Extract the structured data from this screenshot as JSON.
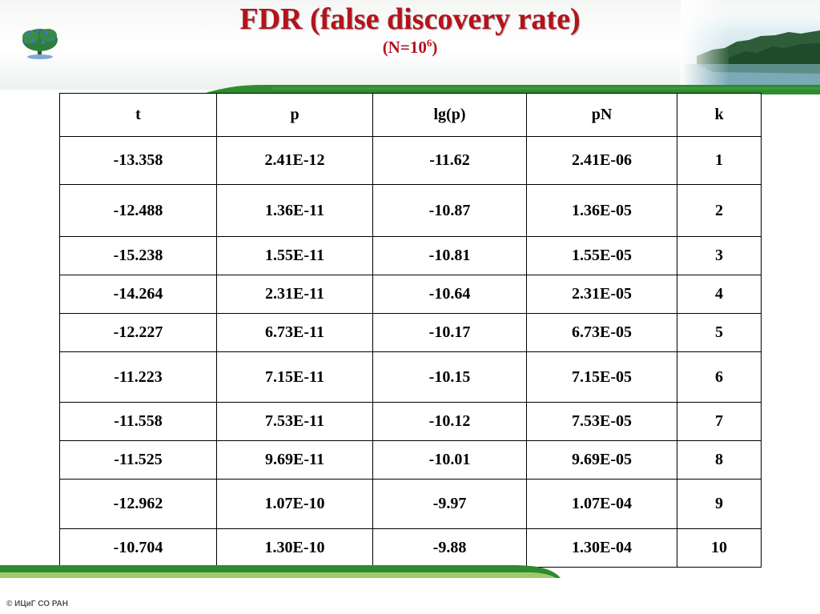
{
  "slide": {
    "title": "FDR (false discovery rate)",
    "subtitle_prefix": "(N=10",
    "subtitle_exponent": "6",
    "subtitle_suffix": ")",
    "footer": "© ИЦиГ СО РАН"
  },
  "colors": {
    "title": "#b5121b",
    "bar_green": "#2e8b2e",
    "bar_light": "#9ccc6a"
  },
  "icons": {
    "logo": "tree-logo-icon",
    "landscape": "lake-forest-landscape"
  },
  "table": {
    "headers": [
      "t",
      "p",
      "lg(p)",
      "pN",
      "k"
    ],
    "rows": [
      [
        "-13.358",
        "2.41E-12",
        "-11.62",
        "2.41E-06",
        "1"
      ],
      [
        "-12.488",
        "1.36E-11",
        "-10.87",
        "1.36E-05",
        "2"
      ],
      [
        "-15.238",
        "1.55E-11",
        "-10.81",
        "1.55E-05",
        "3"
      ],
      [
        "-14.264",
        "2.31E-11",
        "-10.64",
        "2.31E-05",
        "4"
      ],
      [
        "-12.227",
        "6.73E-11",
        "-10.17",
        "6.73E-05",
        "5"
      ],
      [
        "-11.223",
        "7.15E-11",
        "-10.15",
        "7.15E-05",
        "6"
      ],
      [
        "-11.558",
        "7.53E-11",
        "-10.12",
        "7.53E-05",
        "7"
      ],
      [
        "-11.525",
        "9.69E-11",
        "-10.01",
        "9.69E-05",
        "8"
      ],
      [
        "-12.962",
        "1.07E-10",
        "-9.97",
        "1.07E-04",
        "9"
      ],
      [
        "-10.704",
        "1.30E-10",
        "-9.88",
        "1.30E-04",
        "10"
      ]
    ]
  }
}
